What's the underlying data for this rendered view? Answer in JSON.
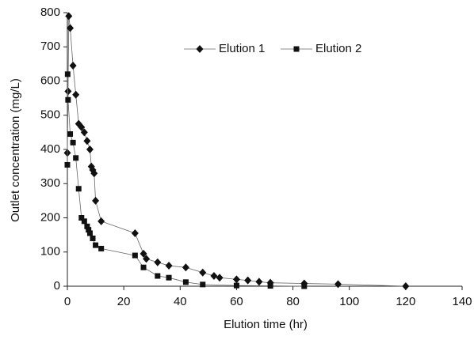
{
  "chart_data": {
    "type": "line",
    "x_label": "Elution time (hr)",
    "y_label": "Outlet concentration (mg/L)",
    "xlim": [
      0,
      140
    ],
    "xticks": [
      0,
      20,
      40,
      60,
      80,
      100,
      120,
      140
    ],
    "ylim": [
      0,
      800
    ],
    "yticks": [
      0,
      100,
      200,
      300,
      400,
      500,
      600,
      700,
      800
    ],
    "legend": "top",
    "series": [
      {
        "name": "Elution 1",
        "color": "#111111",
        "marker": "diamond",
        "x": [
          0,
          0.25,
          0.5,
          1,
          2,
          3,
          4,
          5,
          6,
          7,
          8,
          8.5,
          9,
          9.5,
          10,
          12,
          24,
          27,
          28,
          32,
          36,
          42,
          48,
          52,
          54,
          60,
          64,
          68,
          72,
          84,
          96,
          120
        ],
        "values": [
          390,
          570,
          790,
          755,
          645,
          560,
          475,
          465,
          450,
          425,
          400,
          350,
          340,
          330,
          250,
          190,
          155,
          95,
          80,
          70,
          60,
          55,
          40,
          30,
          25,
          20,
          17,
          13,
          10,
          8,
          6,
          0
        ]
      },
      {
        "name": "Elution 2",
        "color": "#111111",
        "marker": "square",
        "x": [
          0,
          0.1,
          0.25,
          1,
          2,
          3,
          4,
          5,
          6,
          7,
          7.5,
          8,
          9,
          10,
          12,
          24,
          27,
          32,
          36,
          42,
          48,
          60,
          72,
          84
        ],
        "values": [
          355,
          620,
          545,
          445,
          420,
          375,
          285,
          200,
          190,
          175,
          165,
          155,
          140,
          120,
          110,
          90,
          55,
          30,
          25,
          12,
          5,
          2,
          1,
          0
        ]
      }
    ]
  }
}
